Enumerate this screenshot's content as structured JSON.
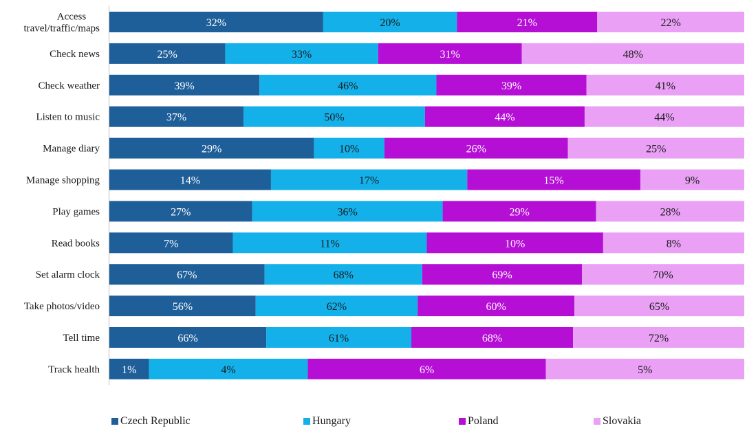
{
  "chart_data": {
    "type": "bar",
    "orientation": "horizontal",
    "stacked": true,
    "normalized": true,
    "categories": [
      "Access travel/traffic/maps",
      "Check news",
      "Check weather",
      "Listen to music",
      "Manage diary",
      "Manage shopping",
      "Play games",
      "Read books",
      "Set alarm clock",
      "Take photos/video",
      "Tell time",
      "Track health"
    ],
    "series": [
      {
        "name": "Czech Republic",
        "color": "#1f5f99",
        "label_color": "#ffffff",
        "values": [
          32,
          25,
          39,
          37,
          29,
          14,
          27,
          7,
          67,
          56,
          66,
          1
        ],
        "labels": [
          "32%",
          "25%",
          "39%",
          "37%",
          "29%",
          "14%",
          "27%",
          "7%",
          "67%",
          "56%",
          "66%",
          "1%"
        ]
      },
      {
        "name": "Hungary",
        "color": "#13b0ea",
        "label_color": "#1a1a1a",
        "values": [
          20,
          33,
          46,
          50,
          10,
          17,
          36,
          11,
          68,
          62,
          61,
          4
        ],
        "labels": [
          "20%",
          "33%",
          "46%",
          "50%",
          "10%",
          "17%",
          "36%",
          "11%",
          "68%",
          "62%",
          "61%",
          "4%"
        ]
      },
      {
        "name": "Poland",
        "color": "#b50fd6",
        "label_color": "#ffffff",
        "values": [
          21,
          31,
          39,
          44,
          26,
          15,
          29,
          10,
          69,
          60,
          68,
          6
        ],
        "labels": [
          "21%",
          "31%",
          "39%",
          "44%",
          "26%",
          "15%",
          "29%",
          "10%",
          "69%",
          "60%",
          "68%",
          "6%"
        ]
      },
      {
        "name": "Slovakia",
        "color": "#e9a0f5",
        "label_color": "#1a1a1a",
        "values": [
          22,
          48,
          41,
          44,
          25,
          9,
          28,
          8,
          70,
          65,
          72,
          5
        ],
        "labels": [
          "22%",
          "48%",
          "41%",
          "44%",
          "25%",
          "9%",
          "28%",
          "8%",
          "70%",
          "65%",
          "72%",
          "5%"
        ]
      }
    ],
    "title": "",
    "xlabel": "",
    "ylabel": "",
    "grid": false,
    "legend_position": "bottom"
  }
}
